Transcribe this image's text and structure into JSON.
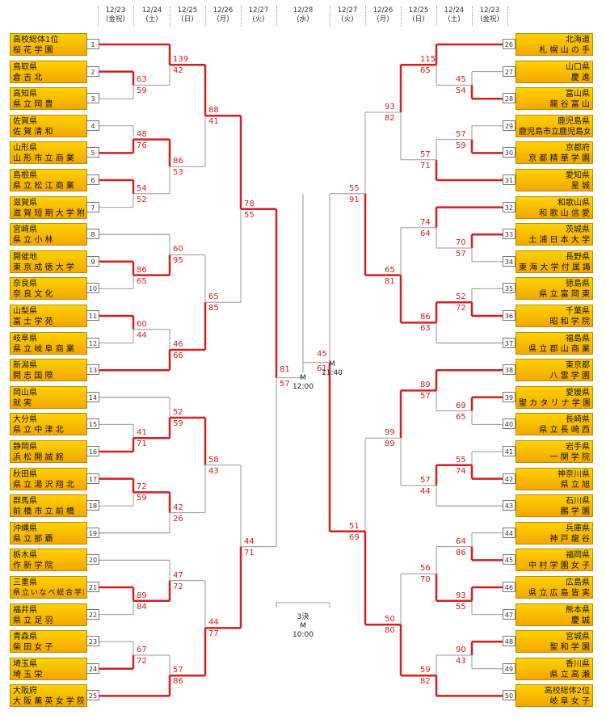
{
  "dates": {
    "left": [
      {
        "d": "12/23",
        "w": "(金祝)"
      },
      {
        "d": "12/24",
        "w": "(土)"
      },
      {
        "d": "12/25",
        "w": "(日)"
      },
      {
        "d": "12/26",
        "w": "(月)"
      },
      {
        "d": "12/27",
        "w": "(火)"
      }
    ],
    "center": {
      "d": "12/28",
      "w": "(水)"
    },
    "right": [
      {
        "d": "12/27",
        "w": "(火)"
      },
      {
        "d": "12/26",
        "w": "(月)"
      },
      {
        "d": "12/25",
        "w": "(日)"
      },
      {
        "d": "12/24",
        "w": "(土)"
      },
      {
        "d": "12/23",
        "w": "(金祝)"
      }
    ]
  },
  "teams_left": [
    {
      "n": "1",
      "p": "高校総体1位",
      "s": "桜 花 学 園"
    },
    {
      "n": "2",
      "p": "鳥取県",
      "s": "倉 吉 北"
    },
    {
      "n": "3",
      "p": "高知県",
      "s": "県 立 岡 豊"
    },
    {
      "n": "4",
      "p": "佐賀県",
      "s": "佐 賀 清 和"
    },
    {
      "n": "5",
      "p": "山形県",
      "s": "山 形 市 立 商 業"
    },
    {
      "n": "6",
      "p": "島根県",
      "s": "県 立 松 江 商 業"
    },
    {
      "n": "7",
      "p": "滋賀県",
      "s": "滋 賀 短 期 大 学 附 属"
    },
    {
      "n": "8",
      "p": "宮崎県",
      "s": "県 立 小 林"
    },
    {
      "n": "9",
      "p": "開催地",
      "s": "東 京 成 徳 大 学"
    },
    {
      "n": "10",
      "p": "奈良県",
      "s": "奈 良 文 化"
    },
    {
      "n": "11",
      "p": "山梨県",
      "s": "富 士 学 苑"
    },
    {
      "n": "12",
      "p": "岐阜県",
      "s": "県 立 岐 阜 商 業"
    },
    {
      "n": "13",
      "p": "新潟県",
      "s": "開 志 国 際"
    },
    {
      "n": "14",
      "p": "岡山県",
      "s": "就 実"
    },
    {
      "n": "15",
      "p": "大分県",
      "s": "県 立 中 津 北"
    },
    {
      "n": "16",
      "p": "静岡県",
      "s": "浜 松 開 誠 館"
    },
    {
      "n": "17",
      "p": "秋田県",
      "s": "県 立 湯 沢 翔 北"
    },
    {
      "n": "18",
      "p": "群馬県",
      "s": "前 橋 市 立 前 橋"
    },
    {
      "n": "19",
      "p": "沖縄県",
      "s": "県 立 那 覇"
    },
    {
      "n": "20",
      "p": "栃木県",
      "s": "作 新 学 院"
    },
    {
      "n": "21",
      "p": "三重県",
      "s": "県 立 い な べ 総 合 学 園"
    },
    {
      "n": "22",
      "p": "福井県",
      "s": "県 立 足 羽"
    },
    {
      "n": "23",
      "p": "青森県",
      "s": "柴 田 女 子"
    },
    {
      "n": "24",
      "p": "埼玉県",
      "s": "埼 玉 栄"
    },
    {
      "n": "25",
      "p": "大阪府",
      "s": "大 阪 薫 英 女 学 院"
    }
  ],
  "teams_right": [
    {
      "n": "26",
      "p": "北海道",
      "s": "札 幌 山 の 手"
    },
    {
      "n": "27",
      "p": "山口県",
      "s": "慶 進"
    },
    {
      "n": "28",
      "p": "富山県",
      "s": "龍 谷 富 山"
    },
    {
      "n": "29",
      "p": "鹿児島県",
      "s": "鹿児島市立鹿児島女子"
    },
    {
      "n": "30",
      "p": "京都府",
      "s": "京 都 精 華 学 園"
    },
    {
      "n": "31",
      "p": "愛知県",
      "s": "星 城"
    },
    {
      "n": "32",
      "p": "和歌山県",
      "s": "和 歌 山 信 愛"
    },
    {
      "n": "33",
      "p": "茨城県",
      "s": "土 浦 日 本 大 学"
    },
    {
      "n": "34",
      "p": "長野県",
      "s": "東 海 大 学 付 属 諏 訪"
    },
    {
      "n": "35",
      "p": "徳島県",
      "s": "県 立 富 岡 東"
    },
    {
      "n": "36",
      "p": "千葉県",
      "s": "昭 和 学 院"
    },
    {
      "n": "37",
      "p": "福島県",
      "s": "県 立 郡 山 商 業"
    },
    {
      "n": "38",
      "p": "東京都",
      "s": "八 雲 学 園"
    },
    {
      "n": "39",
      "p": "愛媛県",
      "s": "聖 カ タ リ ナ 学 園"
    },
    {
      "n": "40",
      "p": "長崎県",
      "s": "県 立 長 崎 西"
    },
    {
      "n": "41",
      "p": "岩手県",
      "s": "一 関 学 院"
    },
    {
      "n": "42",
      "p": "神奈川県",
      "s": "県 立 旭"
    },
    {
      "n": "43",
      "p": "石川県",
      "s": "鵬 学 園"
    },
    {
      "n": "44",
      "p": "兵庫県",
      "s": "神 戸 龍 谷"
    },
    {
      "n": "45",
      "p": "福岡県",
      "s": "中 村 学 園 女 子"
    },
    {
      "n": "46",
      "p": "広島県",
      "s": "県 立 広 島 皆 実"
    },
    {
      "n": "47",
      "p": "熊本県",
      "s": "慶 誠"
    },
    {
      "n": "48",
      "p": "宮城県",
      "s": "聖 和 学 園"
    },
    {
      "n": "49",
      "p": "香川県",
      "s": "県 立 高 瀬"
    },
    {
      "n": "50",
      "p": "高校総体2位",
      "s": "岐 阜 女 子"
    }
  ],
  "scores": {
    "L1": [
      [
        "63",
        "59"
      ],
      [
        "48",
        "76"
      ],
      [
        "54",
        "52"
      ],
      [
        "86",
        "65"
      ],
      [
        "60",
        "44"
      ],
      [
        "41",
        "71"
      ],
      [
        "72",
        "59"
      ],
      [
        "89",
        "84"
      ],
      [
        "67",
        "72"
      ]
    ],
    "L2": [
      [
        "139",
        "42"
      ],
      [
        "86",
        "53"
      ],
      [
        "60",
        "95"
      ],
      [
        "46",
        "66"
      ],
      [
        "52",
        "59"
      ],
      [
        "42",
        "26"
      ],
      [
        "47",
        "72"
      ],
      [
        "57",
        "86"
      ]
    ],
    "L3": [
      [
        "88",
        "41"
      ],
      [
        "65",
        "85"
      ],
      [
        "58",
        "43"
      ],
      [
        "44",
        "77"
      ]
    ],
    "L4": [
      [
        "78",
        "55"
      ],
      [
        "44",
        "71"
      ]
    ],
    "L5": [
      "81",
      "57"
    ],
    "R1": [
      [
        "45",
        "54"
      ],
      [
        "57",
        "59"
      ],
      [
        "70",
        "57"
      ],
      [
        "52",
        "72"
      ],
      [
        "69",
        "65"
      ],
      [
        "55",
        "74"
      ],
      [
        "64",
        "86"
      ],
      [
        "93",
        "55"
      ],
      [
        "90",
        "43"
      ]
    ],
    "R2": [
      [
        "115",
        "65"
      ],
      [
        "57",
        "71"
      ],
      [
        "74",
        "64"
      ],
      [
        "86",
        "63"
      ],
      [
        "89",
        "57"
      ],
      [
        "57",
        "44"
      ],
      [
        "56",
        "70"
      ],
      [
        "59",
        "82"
      ]
    ],
    "R3": [
      [
        "93",
        "82"
      ],
      [
        "65",
        "81"
      ],
      [
        "99",
        "89"
      ],
      [
        "50",
        "80"
      ]
    ],
    "R4": [
      [
        "55",
        "91"
      ],
      [
        "51",
        "69"
      ]
    ],
    "R5": [
      "45",
      "61"
    ]
  },
  "final": {
    "left_label": "M",
    "left_time": "12:00",
    "right_label": "M",
    "right_time": "11:40"
  },
  "third_place": {
    "label": "3決",
    "label2": "M",
    "time": "10:00"
  },
  "colors": {
    "winner_line": "#d21f1f",
    "loser_line": "#999999",
    "team_fill": "#ffc600",
    "score_text": "#d21f1f"
  }
}
